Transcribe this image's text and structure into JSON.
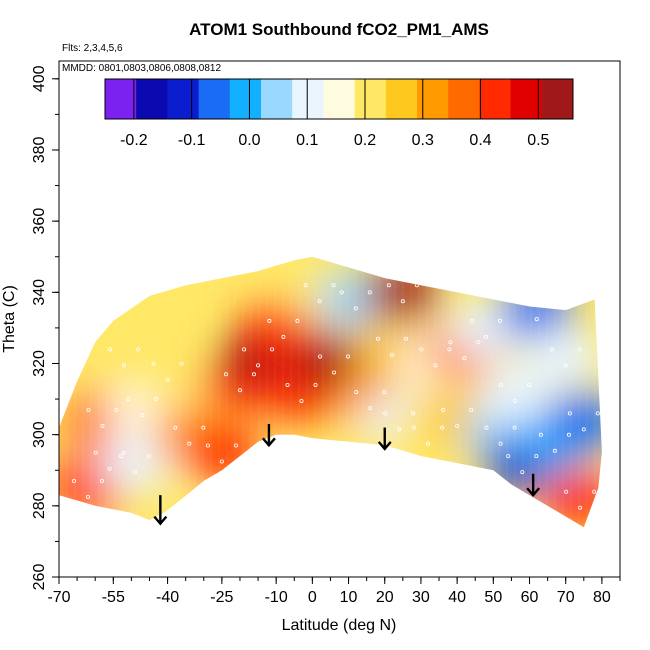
{
  "chart_data": {
    "type": "heatmap",
    "title": "ATOM1 Southbound fCO2_PM1_AMS",
    "annotations": {
      "flights": "Flts: 2,3,4,5,6",
      "dates": "MMDD: 0801,0803,0806,0808,0812"
    },
    "xlabel": "Latitude (deg N)",
    "ylabel": "Theta (C)",
    "xlim": [
      -70,
      85
    ],
    "ylim": [
      260,
      405
    ],
    "xticks": [
      -70,
      -55,
      -40,
      -25,
      -10,
      0,
      10,
      20,
      30,
      40,
      50,
      60,
      70,
      80
    ],
    "yticks": [
      260,
      280,
      300,
      320,
      340,
      360,
      380,
      400
    ],
    "colorbar": {
      "range": [
        -0.25,
        0.56
      ],
      "ticks": [
        -0.2,
        -0.1,
        0.0,
        0.1,
        0.2,
        0.3,
        0.4,
        0.5
      ],
      "tick_labels": [
        "-0.2",
        "-0.1",
        "0.0",
        "0.1",
        "0.2",
        "0.3",
        "0.4",
        "0.5"
      ],
      "colors": [
        "#7b22f0",
        "#0a0ab0",
        "#0a1ed0",
        "#1a6cf5",
        "#12b0ff",
        "#9ad8ff",
        "#eaf6ff",
        "#fffbe0",
        "#ffe866",
        "#ffc81e",
        "#ff9a00",
        "#ff6a00",
        "#ff2a00",
        "#e00000",
        "#a01818"
      ]
    },
    "outline_bottom": [
      [
        -70,
        283
      ],
      [
        -60,
        280
      ],
      [
        -50,
        278
      ],
      [
        -45,
        276
      ],
      [
        -41,
        278
      ],
      [
        -36,
        282
      ],
      [
        -30,
        287
      ],
      [
        -25,
        290
      ],
      [
        -20,
        294
      ],
      [
        -15,
        298
      ],
      [
        -10,
        300
      ],
      [
        -5,
        300
      ],
      [
        0,
        299
      ],
      [
        10,
        298
      ],
      [
        20,
        297
      ],
      [
        30,
        294
      ],
      [
        40,
        292
      ],
      [
        50,
        290
      ],
      [
        55,
        286
      ],
      [
        60,
        283
      ],
      [
        70,
        277
      ],
      [
        75,
        274
      ],
      [
        79,
        285
      ],
      [
        80,
        295
      ]
    ],
    "outline_top": [
      [
        -70,
        302
      ],
      [
        -65,
        315
      ],
      [
        -60,
        326
      ],
      [
        -55,
        332
      ],
      [
        -45,
        339
      ],
      [
        -35,
        342
      ],
      [
        -25,
        344
      ],
      [
        -15,
        346
      ],
      [
        -5,
        349
      ],
      [
        0,
        350
      ],
      [
        10,
        347
      ],
      [
        20,
        344
      ],
      [
        30,
        342
      ],
      [
        40,
        340
      ],
      [
        50,
        338
      ],
      [
        60,
        336
      ],
      [
        70,
        335
      ],
      [
        78,
        338
      ]
    ],
    "blobs": [
      {
        "lat": -62,
        "theta": 285,
        "value": 0.45
      },
      {
        "lat": -56,
        "theta": 293,
        "value": 0.44
      },
      {
        "lat": -58,
        "theta": 305,
        "value": 0.38
      },
      {
        "lat": -49,
        "theta": 292,
        "value": 0.12
      },
      {
        "lat": -47,
        "theta": 308,
        "value": 0.18
      },
      {
        "lat": -40,
        "theta": 318,
        "value": 0.22
      },
      {
        "lat": -52,
        "theta": 322,
        "value": 0.2
      },
      {
        "lat": -34,
        "theta": 300,
        "value": 0.34
      },
      {
        "lat": -25,
        "theta": 295,
        "value": 0.44
      },
      {
        "lat": -20,
        "theta": 315,
        "value": 0.42
      },
      {
        "lat": -15,
        "theta": 322,
        "value": 0.52
      },
      {
        "lat": -8,
        "theta": 330,
        "value": 0.45
      },
      {
        "lat": -3,
        "theta": 312,
        "value": 0.4
      },
      {
        "lat": 6,
        "theta": 320,
        "value": 0.54
      },
      {
        "lat": 2,
        "theta": 340,
        "value": 0.22
      },
      {
        "lat": 12,
        "theta": 338,
        "value": 0.05
      },
      {
        "lat": 16,
        "theta": 310,
        "value": 0.34
      },
      {
        "lat": 22,
        "theta": 325,
        "value": 0.28
      },
      {
        "lat": 24,
        "theta": 304,
        "value": 0.08
      },
      {
        "lat": 25,
        "theta": 340,
        "value": 0.55
      },
      {
        "lat": 32,
        "theta": 300,
        "value": 0.2
      },
      {
        "lat": 34,
        "theta": 322,
        "value": 0.14
      },
      {
        "lat": 42,
        "theta": 324,
        "value": 0.38
      },
      {
        "lat": 40,
        "theta": 305,
        "value": 0.28
      },
      {
        "lat": 48,
        "theta": 330,
        "value": 0.1
      },
      {
        "lat": 52,
        "theta": 300,
        "value": 0.05
      },
      {
        "lat": 58,
        "theta": 292,
        "value": -0.1
      },
      {
        "lat": 56,
        "theta": 312,
        "value": 0.08
      },
      {
        "lat": 62,
        "theta": 335,
        "value": -0.05
      },
      {
        "lat": 67,
        "theta": 298,
        "value": -0.02
      },
      {
        "lat": 70,
        "theta": 322,
        "value": 0.08
      },
      {
        "lat": 74,
        "theta": 282,
        "value": 0.44
      },
      {
        "lat": 75,
        "theta": 304,
        "value": -0.05
      }
    ],
    "arrows": [
      {
        "lat": -42,
        "theta_start": 283,
        "theta_end": 275
      },
      {
        "lat": -12,
        "theta_start": 303,
        "theta_end": 297
      },
      {
        "lat": 20,
        "theta_start": 302,
        "theta_end": 296
      },
      {
        "lat": 61,
        "theta_start": 289,
        "theta_end": 283
      }
    ]
  }
}
